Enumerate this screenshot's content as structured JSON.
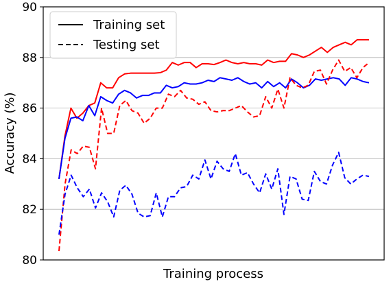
{
  "chart_data": {
    "type": "line",
    "title": "",
    "xlabel": "Training process",
    "ylabel": "Accuracy (%)",
    "ylim": [
      80,
      90
    ],
    "yticks": [
      80,
      82,
      84,
      86,
      88,
      90
    ],
    "xticks_shown": false,
    "grid": "horizontal",
    "legend": {
      "position": "top-left",
      "entries": [
        {
          "label": "Training set",
          "style": "solid"
        },
        {
          "label": "Testing set",
          "style": "dashed"
        }
      ]
    },
    "series": [
      {
        "color": "#ff0000",
        "style": "solid",
        "role": "Training set",
        "values": [
          83.2,
          84.9,
          86.0,
          85.6,
          85.8,
          86.1,
          86.2,
          87.0,
          86.8,
          86.8,
          87.2,
          87.35,
          87.38,
          87.38,
          87.38,
          87.38,
          87.38,
          87.4,
          87.5,
          87.8,
          87.7,
          87.8,
          87.8,
          87.6,
          87.75,
          87.75,
          87.72,
          87.8,
          87.9,
          87.8,
          87.75,
          87.8,
          87.75,
          87.75,
          87.7,
          87.9,
          87.8,
          87.85,
          87.85,
          88.15,
          88.1,
          88.0,
          88.1,
          88.25,
          88.4,
          88.2,
          88.4,
          88.5,
          88.6,
          88.5,
          88.7,
          88.7,
          88.7
        ]
      },
      {
        "color": "#0000ff",
        "style": "solid",
        "role": "Training set",
        "values": [
          83.2,
          84.8,
          85.6,
          85.65,
          85.5,
          86.1,
          85.7,
          86.45,
          86.3,
          86.2,
          86.55,
          86.7,
          86.6,
          86.4,
          86.5,
          86.5,
          86.6,
          86.6,
          86.9,
          86.8,
          86.85,
          87.0,
          86.95,
          86.95,
          87.0,
          87.1,
          87.05,
          87.2,
          87.15,
          87.1,
          87.2,
          87.05,
          86.95,
          87.0,
          86.8,
          87.05,
          86.85,
          87.0,
          86.8,
          87.15,
          87.0,
          86.8,
          86.9,
          87.15,
          87.1,
          87.15,
          87.2,
          87.15,
          86.9,
          87.2,
          87.15,
          87.05,
          87.0
        ]
      },
      {
        "color": "#ff0000",
        "style": "dashed",
        "role": "Testing set",
        "values": [
          80.35,
          83.0,
          84.35,
          84.2,
          84.5,
          84.45,
          83.6,
          86.0,
          85.0,
          85.0,
          86.1,
          86.3,
          85.9,
          85.8,
          85.4,
          85.6,
          86.0,
          86.0,
          86.55,
          86.45,
          86.7,
          86.4,
          86.35,
          86.15,
          86.25,
          85.9,
          85.85,
          85.9,
          85.9,
          86.0,
          86.1,
          85.85,
          85.65,
          85.7,
          86.45,
          86.0,
          86.75,
          86.0,
          87.2,
          86.9,
          86.8,
          86.9,
          87.45,
          87.5,
          86.95,
          87.5,
          87.9,
          87.45,
          87.6,
          87.2,
          87.6,
          87.8
        ]
      },
      {
        "color": "#0000ff",
        "style": "dashed",
        "role": "Testing set",
        "values": [
          81.0,
          82.6,
          83.35,
          82.85,
          82.5,
          82.8,
          82.05,
          82.65,
          82.3,
          81.7,
          82.75,
          82.95,
          82.6,
          81.85,
          81.7,
          81.75,
          82.65,
          81.7,
          82.5,
          82.5,
          82.85,
          82.9,
          83.35,
          83.2,
          83.95,
          83.2,
          83.9,
          83.6,
          83.5,
          84.2,
          83.35,
          83.45,
          83.0,
          82.65,
          83.4,
          82.8,
          83.6,
          81.8,
          83.3,
          83.2,
          82.4,
          82.35,
          83.5,
          83.1,
          83.0,
          83.75,
          84.25,
          83.25,
          83.0,
          83.2,
          83.35,
          83.3
        ]
      }
    ]
  }
}
